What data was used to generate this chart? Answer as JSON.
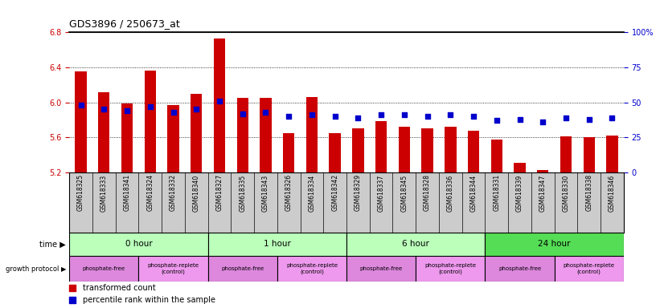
{
  "title": "GDS3896 / 250673_at",
  "samples": [
    "GSM618325",
    "GSM618333",
    "GSM618341",
    "GSM618324",
    "GSM618332",
    "GSM618340",
    "GSM618327",
    "GSM618335",
    "GSM618343",
    "GSM618326",
    "GSM618334",
    "GSM618342",
    "GSM618329",
    "GSM618337",
    "GSM618345",
    "GSM618328",
    "GSM618336",
    "GSM618344",
    "GSM618331",
    "GSM618339",
    "GSM618347",
    "GSM618330",
    "GSM618338",
    "GSM618346"
  ],
  "transformed_count": [
    6.35,
    6.12,
    5.99,
    6.36,
    5.97,
    6.1,
    6.73,
    6.05,
    6.05,
    5.65,
    6.06,
    5.65,
    5.7,
    5.79,
    5.72,
    5.7,
    5.72,
    5.68,
    5.58,
    5.31,
    5.23,
    5.61,
    5.6,
    5.62
  ],
  "percentile_rank": [
    48,
    45,
    44,
    47,
    43,
    45,
    51,
    42,
    43,
    40,
    41,
    40,
    39,
    41,
    41,
    40,
    41,
    40,
    37,
    38,
    36,
    39,
    38,
    39
  ],
  "ylim_left": [
    5.2,
    6.8
  ],
  "ylim_right": [
    0,
    100
  ],
  "yticks_left": [
    5.2,
    5.6,
    6.0,
    6.4,
    6.8
  ],
  "yticks_right": [
    0,
    25,
    50,
    75,
    100
  ],
  "ytick_labels_right": [
    "0",
    "25",
    "50",
    "75",
    "100%"
  ],
  "bar_color": "#cc0000",
  "percentile_color": "#0000cc",
  "bar_bottom": 5.2,
  "time_groups": [
    {
      "label": "0 hour",
      "start": 0,
      "end": 6,
      "color": "#bbffbb"
    },
    {
      "label": "1 hour",
      "start": 6,
      "end": 12,
      "color": "#bbffbb"
    },
    {
      "label": "6 hour",
      "start": 12,
      "end": 18,
      "color": "#bbffbb"
    },
    {
      "label": "24 hour",
      "start": 18,
      "end": 24,
      "color": "#55dd55"
    }
  ],
  "protocol_groups": [
    {
      "label": "phosphate-free",
      "start": 0,
      "end": 3,
      "color": "#dd88dd"
    },
    {
      "label": "phosphate-replete\n(control)",
      "start": 3,
      "end": 6,
      "color": "#ee99ee"
    },
    {
      "label": "phosphate-free",
      "start": 6,
      "end": 9,
      "color": "#dd88dd"
    },
    {
      "label": "phosphate-replete\n(control)",
      "start": 9,
      "end": 12,
      "color": "#ee99ee"
    },
    {
      "label": "phosphate-free",
      "start": 12,
      "end": 15,
      "color": "#dd88dd"
    },
    {
      "label": "phosphate-replete\n(control)",
      "start": 15,
      "end": 18,
      "color": "#ee99ee"
    },
    {
      "label": "phosphate-free",
      "start": 18,
      "end": 21,
      "color": "#dd88dd"
    },
    {
      "label": "phosphate-replete\n(control)",
      "start": 21,
      "end": 24,
      "color": "#ee99ee"
    }
  ],
  "background_color": "#ffffff",
  "axis_color_left": "#cc0000",
  "axis_color_right": "#0000cc",
  "label_bg_color": "#cccccc"
}
